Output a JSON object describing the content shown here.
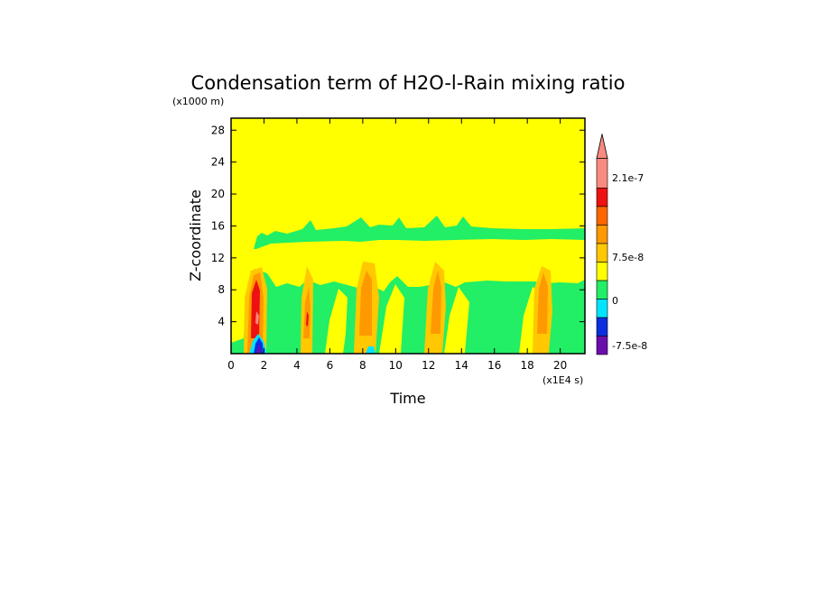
{
  "chart_data": {
    "type": "heatmap",
    "title": "Condensation term of H2O-l-Rain mixing ratio",
    "xlabel": "Time",
    "ylabel": "Z-coordinate",
    "x_unit": "(x1E4 s)",
    "y_unit": "(x1000 m)",
    "xlim": [
      0,
      21.5
    ],
    "ylim": [
      0,
      29.5
    ],
    "x_ticks": [
      "0",
      "2",
      "4",
      "6",
      "8",
      "10",
      "12",
      "14",
      "16",
      "18",
      "20"
    ],
    "x_tick_values": [
      0,
      2,
      4,
      6,
      8,
      10,
      12,
      14,
      16,
      18,
      20
    ],
    "y_ticks": [
      "4",
      "8",
      "12",
      "16",
      "20",
      "24",
      "28"
    ],
    "y_tick_values": [
      4,
      8,
      12,
      16,
      20,
      24,
      28
    ],
    "grid": false,
    "colorbar": {
      "levels": [
        {
          "color": "#6a0dad",
          "range": "< -7.5e-8"
        },
        {
          "color": "#0b2fe0",
          "range": "-7.5e-8 to -5e-8"
        },
        {
          "color": "#00e5ff",
          "range": "-5e-8 to -2.5e-8"
        },
        {
          "color": "#22ee66",
          "range": "-2.5e-8 to 0"
        },
        {
          "color": "#ffff00",
          "range": "0 to 2.5e-8"
        },
        {
          "color": "#ffc800",
          "range": "2.5e-8 to 5e-8"
        },
        {
          "color": "#ff9900",
          "range": "5e-8 to 7.5e-8"
        },
        {
          "color": "#ff6600",
          "range": "7.5e-8 to 1e-7"
        },
        {
          "color": "#ee1111",
          "range": "1e-7 to 2.1e-7"
        },
        {
          "color": "#f88a80",
          "range": "> 2.1e-7"
        }
      ],
      "labels": [
        "2.1e-7",
        "7.5e-8",
        "0",
        "-7.5e-8"
      ],
      "label_values": [
        2.1e-07,
        7.5e-08,
        0,
        -7.5e-08
      ]
    },
    "regions": [
      {
        "color": "#ffff00",
        "description": "background above ~16 km and mid layer",
        "z_range": [
          0,
          29.5
        ]
      },
      {
        "color": "#22ee66",
        "description": "green band near tropopause",
        "z_range": [
          13.5,
          17.0
        ]
      },
      {
        "color": "#22ee66",
        "description": "low-level green region",
        "z_range": [
          0,
          9.5
        ]
      },
      {
        "color": "#ff9900",
        "description": "convective cells",
        "x_values": [
          1.7,
          4.7,
          8.4,
          12.8,
          19.2
        ]
      },
      {
        "color": "#ee1111",
        "description": "strongest cell",
        "x": 1.6,
        "z_range": [
          3,
          10
        ]
      },
      {
        "color": "#0b2fe0",
        "description": "negative near surface",
        "x": 1.8,
        "z_range": [
          0,
          1.6
        ]
      }
    ]
  }
}
